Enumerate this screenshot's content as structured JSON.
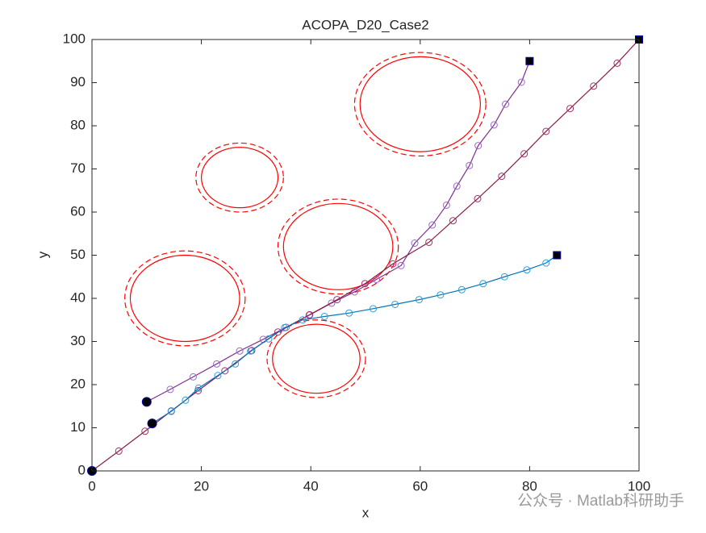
{
  "chart_data": {
    "type": "line",
    "title": "ACOPA_D20_Case2",
    "xlabel": "x",
    "ylabel": "y",
    "xlim": [
      0,
      100
    ],
    "ylim": [
      0,
      100
    ],
    "xticks": [
      0,
      20,
      40,
      60,
      80,
      100
    ],
    "yticks": [
      0,
      10,
      20,
      30,
      40,
      50,
      60,
      70,
      80,
      90,
      100
    ],
    "series": [
      {
        "color": "#7E2F8E",
        "marker_color": "#9966CC",
        "x": [
          10,
          14.3,
          18.5,
          22.8,
          27,
          31.3,
          35.5,
          39.7,
          43.8,
          48,
          52,
          56.5,
          59,
          62.2,
          64.8,
          66.7,
          69,
          70.6,
          73.5,
          75.6,
          78.5,
          80
        ],
        "values": [
          16,
          18.9,
          21.8,
          24.8,
          27.8,
          30.5,
          33.3,
          36.1,
          38.9,
          41.5,
          44.4,
          47.6,
          52.8,
          57,
          61.6,
          66,
          70.8,
          75.4,
          80.2,
          85,
          90.1,
          95
        ]
      },
      {
        "color": "#8B1A4A",
        "marker_color": "#A0306A",
        "x": [
          0,
          4.9,
          9.7,
          14.5,
          19.4,
          24.3,
          29.2,
          34,
          39.8,
          44.8,
          49.9,
          55,
          61.6,
          66,
          70.5,
          74.9,
          79,
          83,
          87.4,
          91.7,
          96,
          100
        ],
        "values": [
          0,
          4.6,
          9.2,
          13.9,
          18.6,
          23.2,
          27.9,
          32.2,
          36.2,
          39.7,
          43.4,
          48,
          53,
          58,
          63.1,
          68.3,
          73.5,
          78.7,
          84,
          89.2,
          94.5,
          100
        ]
      },
      {
        "color": "#0072BD",
        "marker_color": "#2A9FD6",
        "x": [
          11,
          14.5,
          17.1,
          19.5,
          23,
          26.2,
          29,
          32.3,
          35.2,
          38.5,
          42.5,
          47,
          51.4,
          55.4,
          59.8,
          63.7,
          67.6,
          71.5,
          75.4,
          79.5,
          83,
          85
        ],
        "values": [
          11,
          13.8,
          16.4,
          19.2,
          22.1,
          24.8,
          27.8,
          30.6,
          33.2,
          35,
          35.8,
          36.6,
          37.6,
          38.6,
          39.7,
          40.8,
          42,
          43.4,
          45,
          46.6,
          48.2,
          50
        ]
      }
    ],
    "obstacles": [
      {
        "x": 17,
        "y": 40,
        "r": 10,
        "r_outer": 11
      },
      {
        "x": 27,
        "y": 68,
        "r": 7,
        "r_outer": 8
      },
      {
        "x": 45,
        "y": 52,
        "r": 10,
        "r_outer": 11
      },
      {
        "x": 60,
        "y": 85,
        "r": 11,
        "r_outer": 12
      },
      {
        "x": 41,
        "y": 26,
        "r": 8,
        "r_outer": 9
      }
    ],
    "obstacle_color": "#FF0000",
    "watermark": "公众号 · Matlab科研助手"
  }
}
